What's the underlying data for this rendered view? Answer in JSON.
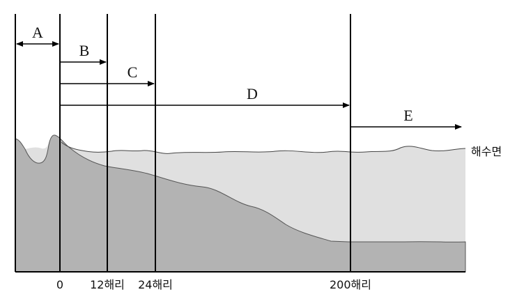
{
  "zones": [
    {
      "id": "A",
      "label": "A"
    },
    {
      "id": "B",
      "label": "B"
    },
    {
      "id": "C",
      "label": "C"
    },
    {
      "id": "D",
      "label": "D"
    },
    {
      "id": "E",
      "label": "E"
    }
  ],
  "sea_surface_label": "해수면",
  "distance_labels": {
    "zero": "0",
    "nm12": "12해리",
    "nm24": "24해리",
    "nm200": "200해리"
  },
  "colors": {
    "water": "#e0e0e0",
    "seabed": "#b3b3b3",
    "lines": "#000000"
  }
}
